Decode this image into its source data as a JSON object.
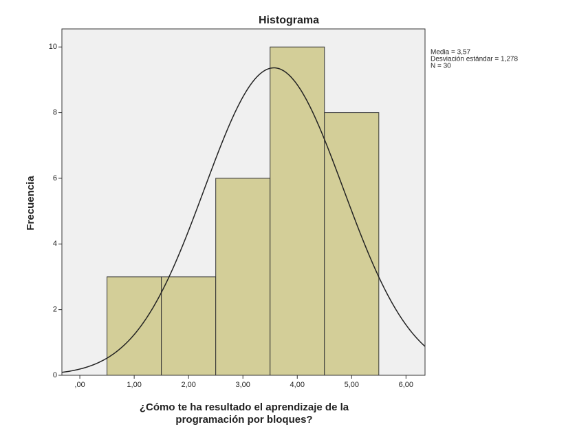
{
  "chart_data": {
    "type": "histogram",
    "title": "Histograma",
    "x_label": [
      "¿Cómo te ha resultado el aprendizaje de la",
      "programación por bloques?"
    ],
    "y_label": "Frecuencia",
    "bins": [
      0.5,
      1.5,
      2.5,
      3.5,
      4.5,
      5.5
    ],
    "values": [
      3,
      3,
      6,
      10,
      8
    ],
    "color": "#d3ce98",
    "xlim": [
      -0.33,
      6.35
    ],
    "ylim": [
      0,
      10.55
    ],
    "xticks": [
      {
        "value": 0,
        "label": ",00"
      },
      {
        "value": 1,
        "label": "1,00"
      },
      {
        "value": 2,
        "label": "2,00"
      },
      {
        "value": 3,
        "label": "3,00"
      },
      {
        "value": 4,
        "label": "4,00"
      },
      {
        "value": 5,
        "label": "5,00"
      },
      {
        "value": 6,
        "label": "6,00"
      }
    ],
    "yticks": [
      0,
      2,
      4,
      6,
      8,
      10
    ],
    "normal_curve": {
      "mean": {
        "value": 3.57,
        "label": "Media = 3,57"
      },
      "sd": {
        "value": 1.278,
        "label": "Desviación estándar = 1,278"
      },
      "n": {
        "value": 30,
        "label": "N = 30"
      }
    }
  }
}
